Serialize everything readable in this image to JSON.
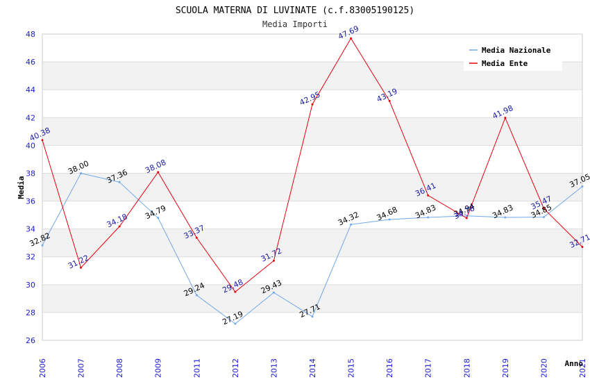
{
  "chart_data": {
    "type": "line",
    "title": "SCUOLA MATERNA DI LUVINATE (c.f.83005190125)",
    "subtitle": "Media Importi",
    "xlabel": "Anno",
    "ylabel": "Media",
    "ylim": [
      26,
      48
    ],
    "yticks": [
      "26",
      "28",
      "30",
      "32",
      "34",
      "36",
      "38",
      "40",
      "42",
      "44",
      "46",
      "48"
    ],
    "categories": [
      "2006",
      "2007",
      "2008",
      "2009",
      "2011",
      "2012",
      "2013",
      "2014",
      "2015",
      "2016",
      "2017",
      "2018",
      "2019",
      "2020",
      "2021"
    ],
    "grid": true,
    "legend_position": "top-right",
    "series": [
      {
        "name": "Media Nazionale",
        "color": "#6fa8e8",
        "label_color": "#000000",
        "values": [
          32.82,
          38.0,
          37.36,
          34.79,
          29.24,
          27.19,
          29.43,
          27.71,
          34.32,
          34.68,
          34.83,
          34.94,
          34.83,
          34.85,
          37.05
        ],
        "labels": [
          "32.82",
          "38.00",
          "37.36",
          "34.79",
          "29.24",
          "27.19",
          "29.43",
          "27.71",
          "34.32",
          "34.68",
          "34.83",
          "34.94",
          "34.83",
          "34.85",
          "37.05"
        ]
      },
      {
        "name": "Media Ente",
        "color": "#e8000b",
        "label_color": "#1a1aa6",
        "values": [
          40.38,
          31.22,
          34.18,
          38.08,
          33.37,
          29.48,
          31.72,
          42.95,
          47.69,
          43.19,
          36.41,
          34.78,
          41.98,
          35.47,
          32.71
        ],
        "labels": [
          "40.38",
          "31.22",
          "34.18",
          "38.08",
          "33.37",
          "29.48",
          "31.72",
          "42.95",
          "47.69",
          "43.19",
          "36.41",
          "34.78",
          "41.98",
          "35.47",
          "32.71"
        ]
      }
    ]
  }
}
